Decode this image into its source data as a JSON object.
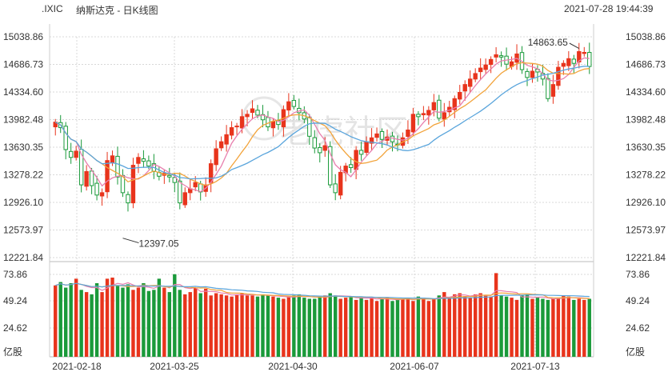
{
  "header": {
    "symbol": ".IXIC",
    "title": "纳斯达克 - 日K线图",
    "datetime": "2021-07-28 19:44:39"
  },
  "watermark": "老虎社区",
  "colors": {
    "up": "#e8341c",
    "down": "#1a9a3a",
    "ma5": "#e87fae",
    "ma10": "#f2a33a",
    "ma20": "#5aa5dc",
    "grid": "#d8d8d8"
  },
  "chart_data": [
    {
      "type": "candlestick",
      "ylabels": [
        "15038.86",
        "14686.73",
        "14334.60",
        "13982.48",
        "13630.35",
        "13278.22",
        "12926.10",
        "12573.97",
        "12221.84"
      ],
      "ylim": [
        12221.84,
        15038.86
      ],
      "xlabels": [
        "2021-02-18",
        "2021-03-25",
        "2021-04-30",
        "2021-06-07",
        "2021-07-13"
      ],
      "annotations": [
        {
          "label": "14863.65",
          "type": "high"
        },
        {
          "label": "12397.05",
          "type": "low"
        }
      ],
      "closes": [
        13950,
        13880,
        13600,
        13500,
        13580,
        13150,
        13320,
        13140,
        13020,
        13050,
        13460,
        13520,
        13250,
        13050,
        12920,
        13400,
        13500,
        13450,
        13390,
        13320,
        13260,
        13300,
        13250,
        13180,
        12920,
        13050,
        13100,
        13180,
        13060,
        13150,
        13420,
        13610,
        13700,
        13790,
        13880,
        13900,
        14020,
        14050,
        14120,
        14040,
        13980,
        13890,
        13960,
        13920,
        14110,
        14210,
        14150,
        14070,
        13990,
        13770,
        13620,
        13560,
        13650,
        13150,
        13050,
        13310,
        13390,
        13370,
        13590,
        13540,
        13700,
        13750,
        13800,
        13730,
        13760,
        13700,
        13660,
        13750,
        13850,
        14050,
        14020,
        14060,
        14100,
        14200,
        14000,
        14070,
        14140,
        14250,
        14330,
        14430,
        14500,
        14570,
        14640,
        14680,
        14750,
        14810,
        14780,
        14690,
        14720,
        14820,
        14620,
        14520,
        14600,
        14590,
        14500,
        14250,
        14430,
        14650,
        14700,
        14760,
        14700,
        14850,
        14840,
        14660
      ],
      "vol_axis": [
        "73.86",
        "49.24",
        "24.62",
        "亿股"
      ],
      "volumes": [
        64,
        67,
        62,
        66,
        70,
        60,
        58,
        56,
        66,
        58,
        70,
        71,
        64,
        62,
        65,
        60,
        62,
        66,
        59,
        60,
        70,
        62,
        58,
        74,
        60,
        56,
        58,
        62,
        57,
        61,
        55,
        57,
        56,
        55,
        54,
        56,
        57,
        55,
        55,
        54,
        56,
        55,
        54,
        53,
        52,
        54,
        55,
        56,
        53,
        52,
        52,
        54,
        55,
        57,
        55,
        52,
        53,
        54,
        51,
        54,
        51,
        53,
        50,
        52,
        53,
        50,
        51,
        52,
        53,
        50,
        54,
        53,
        50,
        52,
        55,
        58,
        52,
        56,
        57,
        54,
        53,
        56,
        57,
        55,
        54,
        75,
        55,
        54,
        53,
        51,
        55,
        56,
        52,
        53,
        52,
        51,
        52,
        53,
        55,
        54,
        51,
        52,
        51,
        52
      ]
    }
  ]
}
